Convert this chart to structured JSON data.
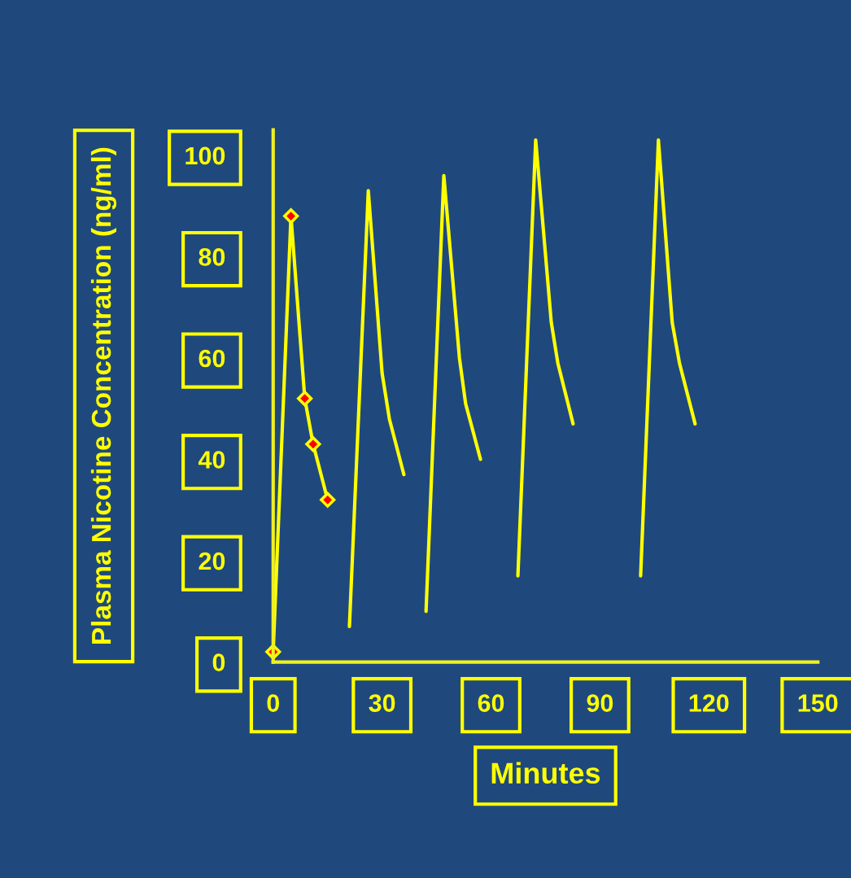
{
  "chart_data": {
    "type": "line",
    "xlabel": "Minutes",
    "ylabel": "Plasma Nicotine Concentration (ng/ml)",
    "xlim": [
      0,
      150
    ],
    "ylim": [
      0,
      105
    ],
    "xticks": [
      0,
      30,
      60,
      90,
      120,
      150
    ],
    "yticks": [
      0,
      20,
      40,
      60,
      80,
      100
    ],
    "grid": false,
    "legend": false,
    "series": [
      {
        "color": "#ffff00",
        "marker": "diamond",
        "x": [
          0,
          4.9,
          8.7,
          11,
          15
        ],
        "values": [
          2,
          88,
          52,
          43,
          32
        ]
      },
      {
        "color": "#ffff00",
        "marker": "none",
        "x": [
          21,
          26.2,
          30,
          32,
          36
        ],
        "values": [
          7,
          93,
          57,
          48,
          37
        ]
      },
      {
        "color": "#ffff00",
        "marker": "none",
        "x": [
          42.1,
          47,
          51.3,
          53,
          57.1
        ],
        "values": [
          10,
          96,
          60,
          51,
          40
        ]
      },
      {
        "color": "#ffff00",
        "marker": "none",
        "x": [
          67.4,
          72.3,
          76.6,
          78.4,
          82.6
        ],
        "values": [
          17,
          103,
          67,
          59,
          47
        ]
      },
      {
        "color": "#ffff00",
        "marker": "none",
        "x": [
          101.2,
          106.1,
          109.9,
          111.9,
          116.2
        ],
        "values": [
          17,
          103,
          67,
          59,
          47
        ]
      }
    ]
  }
}
